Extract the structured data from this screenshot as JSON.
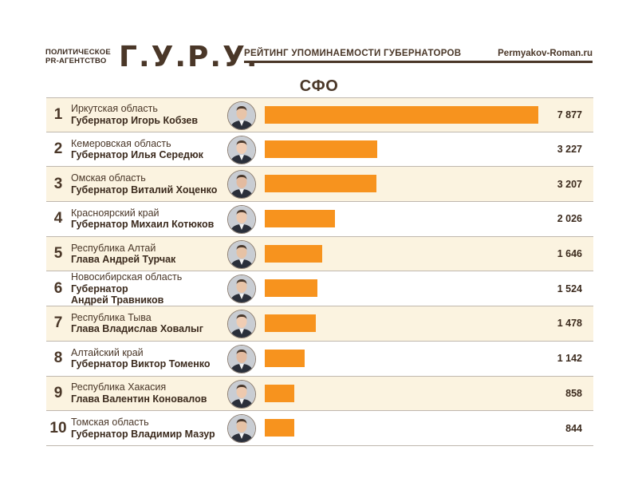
{
  "header": {
    "brand_sub_line1": "ПОЛИТИЧЕСКОЕ",
    "brand_sub_line2": "PR-АГЕНТСТВО",
    "brand_logo": "Г.У.Р.У.",
    "title": "РЕЙТИНГ УПОМИНАЕМОСТИ ГУБЕРНАТОРОВ",
    "site": "Permyakov-Roman.ru"
  },
  "region_title": "СФО",
  "colors": {
    "bar": "#f7931e",
    "text": "#4a3728",
    "highlight_row": "#fbf3e0"
  },
  "chart_data": {
    "type": "bar",
    "orientation": "horizontal",
    "title": "СФО",
    "max_value": 7877,
    "rows": [
      {
        "rank": "1",
        "region": "Иркутская область",
        "person": "Губернатор Игорь Кобзев",
        "value": 7877,
        "value_label": "7 877",
        "highlight": true
      },
      {
        "rank": "2",
        "region": "Кемеровская область",
        "person": "Губернатор Илья Середюк",
        "value": 3227,
        "value_label": "3 227",
        "highlight": false
      },
      {
        "rank": "3",
        "region": "Омская область",
        "person": "Губернатор Виталий Хоценко",
        "value": 3207,
        "value_label": "3 207",
        "highlight": true
      },
      {
        "rank": "4",
        "region": "Красноярский край",
        "person": "Губернатор Михаил Котюков",
        "value": 2026,
        "value_label": "2 026",
        "highlight": false
      },
      {
        "rank": "5",
        "region": "Республика Алтай",
        "person": "Глава Андрей Турчак",
        "value": 1646,
        "value_label": "1 646",
        "highlight": true
      },
      {
        "rank": "6",
        "region": "Новосибирская область",
        "person": "Губернатор\nАндрей Травников",
        "value": 1524,
        "value_label": "1 524",
        "highlight": false
      },
      {
        "rank": "7",
        "region": "Республика Тыва",
        "person": "Глава Владислав Ховалыг",
        "value": 1478,
        "value_label": "1 478",
        "highlight": true
      },
      {
        "rank": "8",
        "region": "Алтайский край",
        "person": "Губернатор Виктор Томенко",
        "value": 1142,
        "value_label": "1 142",
        "highlight": false
      },
      {
        "rank": "9",
        "region": "Республика Хакасия",
        "person": "Глава Валентин Коновалов",
        "value": 858,
        "value_label": "858",
        "highlight": true
      },
      {
        "rank": "10",
        "region": "Томская область",
        "person": "Губернатор Владимир Мазур",
        "value": 844,
        "value_label": "844",
        "highlight": false
      }
    ]
  }
}
